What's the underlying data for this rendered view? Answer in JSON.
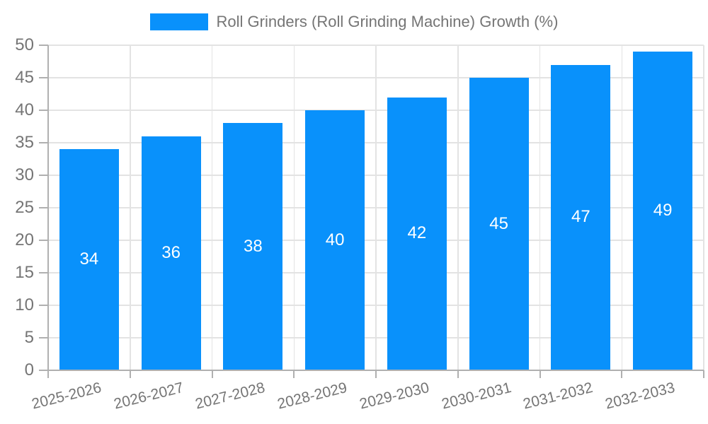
{
  "chart_data": {
    "type": "bar",
    "title": "Roll Grinders (Roll Grinding Machine) Growth (%)",
    "legend_label": "Roll Grinders (Roll Grinding Machine) Growth (%)",
    "legend_position": "top-center",
    "categories": [
      "2025-2026",
      "2026-2027",
      "2027-2028",
      "2028-2029",
      "2029-2030",
      "2030-2031",
      "2031-2032",
      "2032-2033"
    ],
    "values": [
      34,
      36,
      38,
      40,
      42,
      45,
      47,
      49
    ],
    "value_labels_inside_bars": true,
    "xlabel": "",
    "ylabel": "",
    "ylim": [
      0,
      50
    ],
    "ytick_step": 5,
    "ytick_labels": [
      "0",
      "5",
      "10",
      "15",
      "20",
      "25",
      "30",
      "35",
      "40",
      "45",
      "50"
    ],
    "grid": true,
    "x_label_rotation_deg": -14,
    "colors": {
      "bar": "#0991FB",
      "grid": "#E3E3E3",
      "axis": "#B0B0B0",
      "text": "#757575",
      "bar_label": "#FFFFFF",
      "background": "#FFFFFF"
    }
  }
}
